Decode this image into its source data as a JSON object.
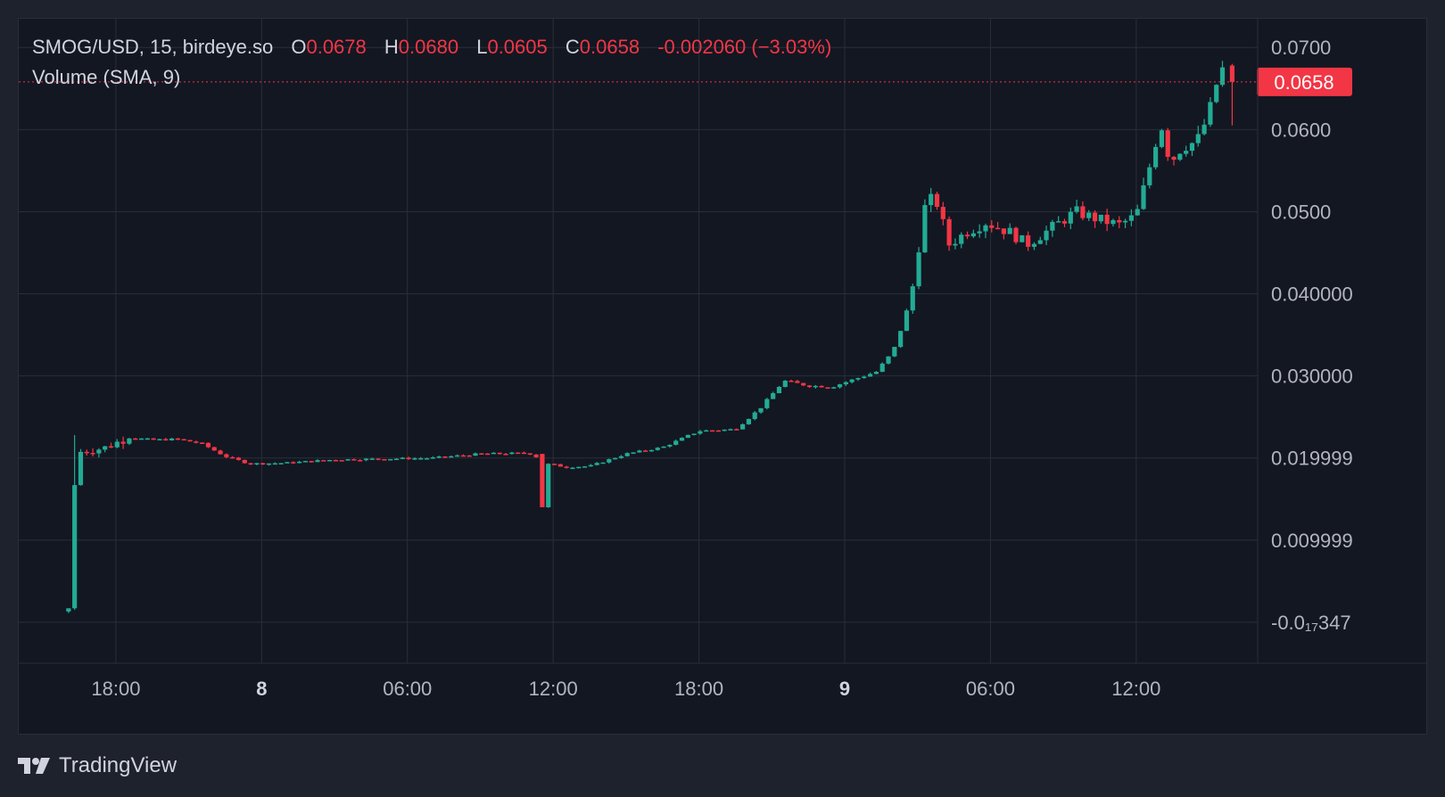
{
  "legend": {
    "symbol": "SMOG/USD, 15, birdeye.so",
    "o_label": "O",
    "o_value": "0.0678",
    "h_label": "H",
    "h_value": "0.0680",
    "l_label": "L",
    "l_value": "0.0605",
    "c_label": "C",
    "c_value": "0.0658",
    "change": "-0.002060 (−3.03%)",
    "volume": "Volume (SMA, 9)"
  },
  "brand": {
    "name": "TradingView",
    "icon": "tradingview-logo-icon"
  },
  "colors": {
    "up": "#22ab94",
    "down": "#f23645",
    "grid": "#2a2e39",
    "text": "#b2b5be",
    "background": "#131722"
  },
  "chart_data": {
    "type": "candlestick",
    "interval": "15",
    "source": "birdeye.so",
    "symbol": "SMOG/USD",
    "last_price": 0.0658,
    "last_price_label": "0.0658",
    "y_ticks": [
      {
        "value": 0.07,
        "label": "0.0700"
      },
      {
        "value": 0.06,
        "label": "0.0600"
      },
      {
        "value": 0.05,
        "label": "0.0500"
      },
      {
        "value": 0.04,
        "label": "0.040000"
      },
      {
        "value": 0.03,
        "label": "0.030000"
      },
      {
        "value": 0.02,
        "label": "0.019999"
      },
      {
        "value": 0.01,
        "label": "0.009999"
      },
      {
        "value": 0.0,
        "label": "-0.0₁₇347"
      }
    ],
    "x_ticks": [
      {
        "hour": 18,
        "label": "18:00",
        "bold": false
      },
      {
        "hour": 24,
        "label": "8",
        "bold": true
      },
      {
        "hour": 30,
        "label": "06:00",
        "bold": false
      },
      {
        "hour": 36,
        "label": "12:00",
        "bold": false
      },
      {
        "hour": 42,
        "label": "18:00",
        "bold": false
      },
      {
        "hour": 48,
        "label": "9",
        "bold": true
      },
      {
        "hour": 54,
        "label": "06:00",
        "bold": false
      },
      {
        "hour": 60,
        "label": "12:00",
        "bold": false
      }
    ],
    "ylim": [
      -0.005,
      0.0735
    ],
    "xlim_hours": [
      14.0,
      65.0
    ],
    "grid": true,
    "anchors": [
      [
        16.0,
        0.0203
      ],
      [
        16.6,
        0.0208
      ],
      [
        17.5,
        0.0212
      ],
      [
        18.5,
        0.0225
      ],
      [
        19.5,
        0.0222
      ],
      [
        20.5,
        0.0223
      ],
      [
        21.5,
        0.0218
      ],
      [
        22.5,
        0.0202
      ],
      [
        23.5,
        0.0193
      ],
      [
        25.0,
        0.0194
      ],
      [
        27.0,
        0.0198
      ],
      [
        29.0,
        0.0199
      ],
      [
        31.0,
        0.02
      ],
      [
        33.0,
        0.0205
      ],
      [
        35.0,
        0.0206
      ],
      [
        35.4,
        0.02
      ],
      [
        35.8,
        0.0193
      ],
      [
        36.5,
        0.0189
      ],
      [
        37.5,
        0.019
      ],
      [
        39.0,
        0.0205
      ],
      [
        40.5,
        0.0213
      ],
      [
        42.0,
        0.0233
      ],
      [
        43.5,
        0.0235
      ],
      [
        44.5,
        0.026
      ],
      [
        45.5,
        0.0294
      ],
      [
        46.5,
        0.0288
      ],
      [
        47.5,
        0.0287
      ],
      [
        48.5,
        0.0297
      ],
      [
        49.3,
        0.0305
      ],
      [
        50.0,
        0.033
      ],
      [
        50.7,
        0.039
      ],
      [
        51.3,
        0.0505
      ],
      [
        51.7,
        0.052
      ],
      [
        52.3,
        0.046
      ],
      [
        53.0,
        0.0475
      ],
      [
        53.8,
        0.0487
      ],
      [
        54.8,
        0.0475
      ],
      [
        55.5,
        0.046
      ],
      [
        56.5,
        0.048
      ],
      [
        57.5,
        0.05
      ],
      [
        58.5,
        0.049
      ],
      [
        59.3,
        0.0484
      ],
      [
        60.0,
        0.0495
      ],
      [
        60.6,
        0.056
      ],
      [
        61.0,
        0.061
      ],
      [
        61.4,
        0.056
      ],
      [
        61.9,
        0.058
      ],
      [
        62.5,
        0.0585
      ],
      [
        63.0,
        0.062
      ],
      [
        63.5,
        0.0678
      ],
      [
        63.7,
        0.0658
      ]
    ]
  }
}
